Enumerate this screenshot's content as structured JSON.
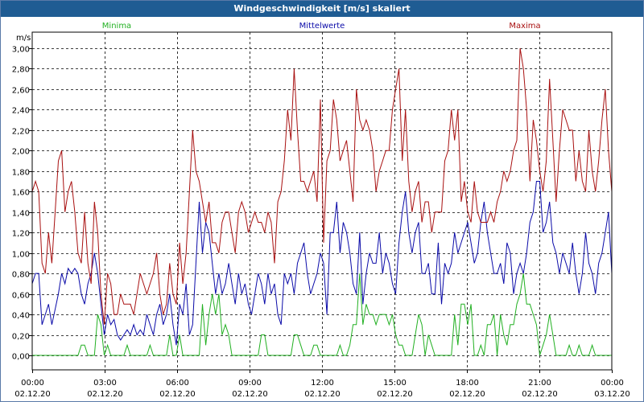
{
  "window": {
    "title": "Windgeschwindigkeit [m/s] skaliert"
  },
  "chart_data": {
    "type": "line",
    "title": "Windgeschwindigkeit [m/s] skaliert",
    "ylabel": "m/s",
    "xlabel": "",
    "ylim": [
      0,
      3.0
    ],
    "xlim_hours": [
      0,
      24
    ],
    "grid": true,
    "x_ticks": [
      {
        "time": "00:00",
        "date": "02.12.20"
      },
      {
        "time": "03:00",
        "date": "02.12.20"
      },
      {
        "time": "06:00",
        "date": "02.12.20"
      },
      {
        "time": "09:00",
        "date": "02.12.20"
      },
      {
        "time": "12:00",
        "date": "02.12.20"
      },
      {
        "time": "15:00",
        "date": "02.12.20"
      },
      {
        "time": "18:00",
        "date": "02.12.20"
      },
      {
        "time": "21:00",
        "date": "02.12.20"
      },
      {
        "time": "00:00",
        "date": "03.12.20"
      }
    ],
    "y_ticks": [
      "0,00",
      "0,20",
      "0,40",
      "0,60",
      "0,80",
      "1,00",
      "1,20",
      "1,40",
      "1,60",
      "1,80",
      "2,00",
      "2,20",
      "2,40",
      "2,60",
      "2,80",
      "3,00"
    ],
    "colors": {
      "min": "#22b022",
      "mean": "#0a0aa8",
      "max": "#a81010",
      "grid": "#000000"
    },
    "series": [
      {
        "name": "Minima",
        "legend_position": "top-left",
        "values": [
          0,
          0,
          0,
          0,
          0,
          0,
          0,
          0,
          0,
          0,
          0,
          0,
          0,
          0,
          0,
          0.1,
          0.1,
          0,
          0,
          0,
          0.4,
          0.3,
          0,
          0.1,
          0,
          0,
          0,
          0,
          0,
          0.1,
          0,
          0,
          0,
          0,
          0,
          0,
          0.1,
          0,
          0,
          0,
          0,
          0,
          0.2,
          0,
          0,
          0.2,
          0,
          0,
          0,
          0,
          0,
          0,
          0.5,
          0.1,
          0.4,
          0.6,
          0.4,
          0.6,
          0.2,
          0.3,
          0.2,
          0,
          0,
          0,
          0,
          0,
          0,
          0,
          0,
          0,
          0.2,
          0.2,
          0,
          0,
          0,
          0,
          0,
          0,
          0,
          0,
          0.2,
          0.2,
          0.1,
          0,
          0,
          0,
          0.1,
          0.1,
          0,
          0,
          0,
          0,
          0,
          0,
          0.1,
          0,
          0,
          0.1,
          0.3,
          0.3,
          0.8,
          0.3,
          0.5,
          0.4,
          0.4,
          0.3,
          0.4,
          0.4,
          0.4,
          0.3,
          0.4,
          0.2,
          0.1,
          0.1,
          0,
          0,
          0,
          0.2,
          0.4,
          0.3,
          0,
          0.2,
          0.1,
          0,
          0,
          0,
          0,
          0,
          0,
          0.4,
          0.1,
          0.5,
          0.5,
          0.3,
          0.5,
          0,
          0,
          0.1,
          0,
          0.3,
          0.3,
          0.4,
          0,
          0.4,
          0.2,
          0.1,
          0.3,
          0.3,
          0.5,
          0.6,
          0.8,
          0.5,
          0.5,
          0.4,
          0.3,
          0,
          0.1,
          0.2,
          0.4,
          0.2,
          0,
          0,
          0,
          0,
          0.1,
          0,
          0,
          0.1,
          0,
          0,
          0,
          0.1,
          0,
          0,
          0,
          0,
          0,
          0
        ]
      },
      {
        "name": "Mittelwerte",
        "legend_position": "top-center",
        "values": [
          0.7,
          0.8,
          0.8,
          0.3,
          0.4,
          0.5,
          0.3,
          0.45,
          0.6,
          0.8,
          0.7,
          0.85,
          0.8,
          0.85,
          0.8,
          0.6,
          0.5,
          0.7,
          0.8,
          1.0,
          0.8,
          0.5,
          0.2,
          0.4,
          0.3,
          0.35,
          0.2,
          0.15,
          0.2,
          0.25,
          0.2,
          0.3,
          0.2,
          0.25,
          0.2,
          0.4,
          0.3,
          0.2,
          0.4,
          0.5,
          0.3,
          0.4,
          0.6,
          0.3,
          0.1,
          0.5,
          0.4,
          0.7,
          0.2,
          0.3,
          0.9,
          1.5,
          1.0,
          1.3,
          1.2,
          0.9,
          0.6,
          0.8,
          0.6,
          0.7,
          0.9,
          0.7,
          0.5,
          0.8,
          0.6,
          0.7,
          0.5,
          0.4,
          0.6,
          0.8,
          0.7,
          0.5,
          0.8,
          0.6,
          0.7,
          0.4,
          0.3,
          0.8,
          0.7,
          0.8,
          0.6,
          0.9,
          1.0,
          1.1,
          0.8,
          0.6,
          0.7,
          0.8,
          1.0,
          0.9,
          0.4,
          1.2,
          1.2,
          1.5,
          1.0,
          1.3,
          1.2,
          1.0,
          0.7,
          0.6,
          1.2,
          0.5,
          0.8,
          1.0,
          0.9,
          0.9,
          1.2,
          0.8,
          1.0,
          0.9,
          0.7,
          0.6,
          1.1,
          1.4,
          1.6,
          1.2,
          1.0,
          1.2,
          1.3,
          0.8,
          0.8,
          0.9,
          0.6,
          0.6,
          1.1,
          0.5,
          0.9,
          0.8,
          0.9,
          1.2,
          1.0,
          1.1,
          1.2,
          1.3,
          1.1,
          0.9,
          1.0,
          1.3,
          1.5,
          1.2,
          1.0,
          0.8,
          0.8,
          0.9,
          0.7,
          1.1,
          1.0,
          0.6,
          0.8,
          0.9,
          0.8,
          1.0,
          1.3,
          1.4,
          1.7,
          1.7,
          1.2,
          1.3,
          1.5,
          1.1,
          1.0,
          0.8,
          1.0,
          0.9,
          0.8,
          1.1,
          0.8,
          0.6,
          0.8,
          1.2,
          0.9,
          0.8,
          0.6,
          0.9,
          1.0,
          1.2,
          1.4,
          0.8
        ]
      },
      {
        "name": "Maxima",
        "legend_position": "top-right",
        "values": [
          1.6,
          1.7,
          1.6,
          0.9,
          0.8,
          1.2,
          0.9,
          1.4,
          1.9,
          2.0,
          1.4,
          1.6,
          1.7,
          1.4,
          1.0,
          0.9,
          1.4,
          0.9,
          0.7,
          1.5,
          1.2,
          0.6,
          0.3,
          0.8,
          0.7,
          0.4,
          0.4,
          0.6,
          0.5,
          0.5,
          0.5,
          0.4,
          0.6,
          0.8,
          0.7,
          0.6,
          0.7,
          0.8,
          1.0,
          0.6,
          0.4,
          0.5,
          0.9,
          0.6,
          0.5,
          1.1,
          0.7,
          1.0,
          1.6,
          2.2,
          1.8,
          1.7,
          1.5,
          1.3,
          1.5,
          1.1,
          1.1,
          1.0,
          1.3,
          1.4,
          1.4,
          1.2,
          1.0,
          1.4,
          1.5,
          1.4,
          1.2,
          1.3,
          1.4,
          1.3,
          1.3,
          1.2,
          1.4,
          1.3,
          0.9,
          1.5,
          1.6,
          1.9,
          2.4,
          2.1,
          2.8,
          2.2,
          1.7,
          1.7,
          1.6,
          1.7,
          1.8,
          1.5,
          2.5,
          1.1,
          1.9,
          2.0,
          2.5,
          2.3,
          1.9,
          2.0,
          2.1,
          1.8,
          1.5,
          2.6,
          2.3,
          2.2,
          2.3,
          2.2,
          2.0,
          1.6,
          1.8,
          1.9,
          2.0,
          2.0,
          2.4,
          2.6,
          2.8,
          1.9,
          2.4,
          1.7,
          1.4,
          1.6,
          1.7,
          1.3,
          1.5,
          1.5,
          1.2,
          1.4,
          1.4,
          1.4,
          1.9,
          2.0,
          2.4,
          2.1,
          2.4,
          1.5,
          1.7,
          1.4,
          1.3,
          1.7,
          1.4,
          1.3,
          1.3,
          1.3,
          1.4,
          1.3,
          1.5,
          1.6,
          1.8,
          1.7,
          1.8,
          2.0,
          2.1,
          3.0,
          2.8,
          2.4,
          1.7,
          2.3,
          2.1,
          1.8,
          1.6,
          1.9,
          2.7,
          2.1,
          1.5,
          2.0,
          2.4,
          2.3,
          2.2,
          2.2,
          1.7,
          2.0,
          1.7,
          1.6,
          2.2,
          1.8,
          1.6,
          1.9,
          2.3,
          2.6,
          2.0,
          1.6
        ]
      }
    ]
  }
}
